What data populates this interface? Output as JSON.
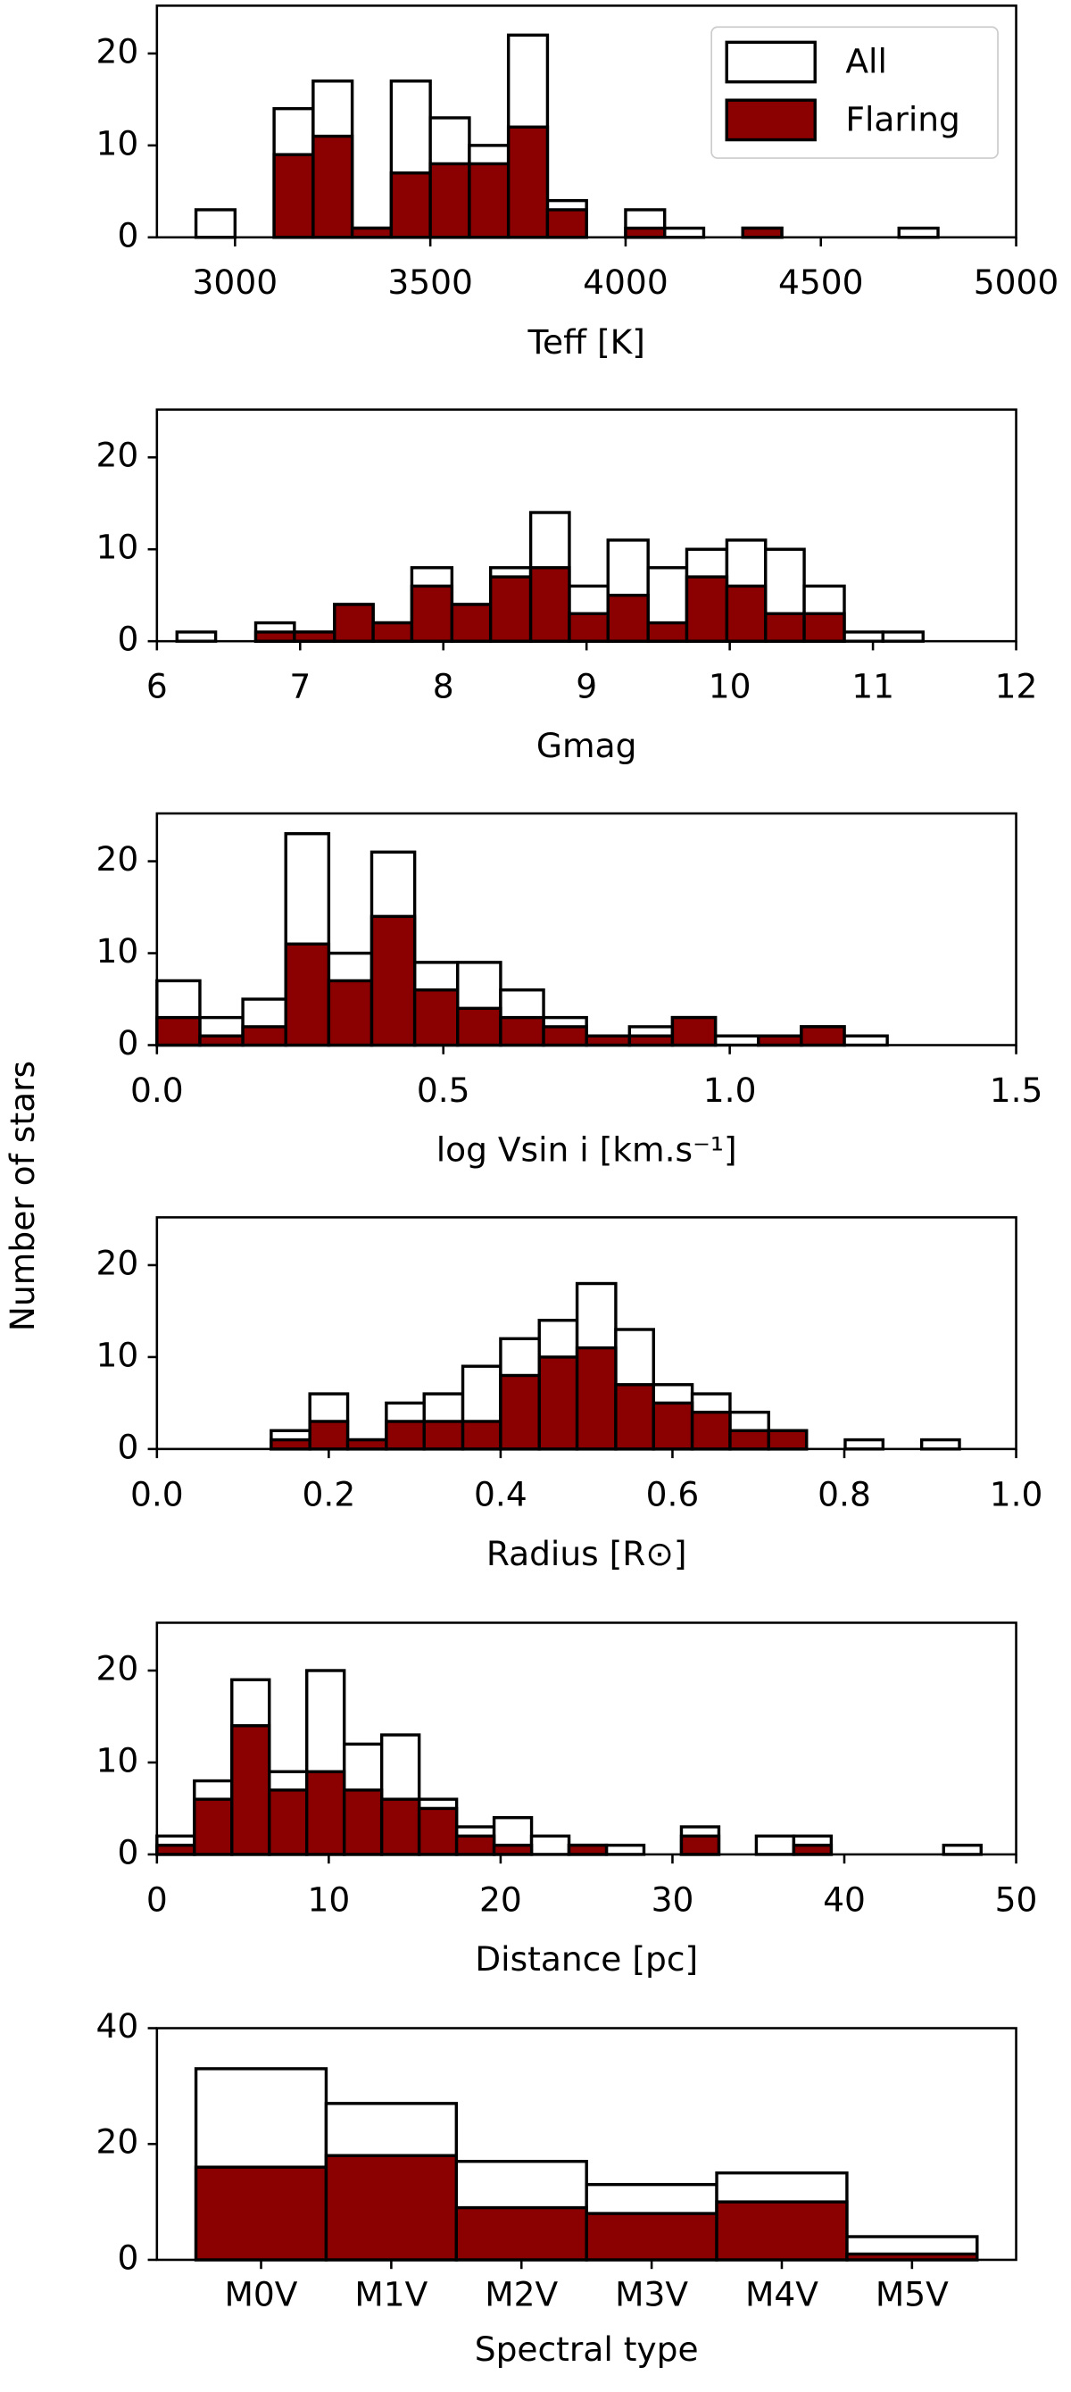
{
  "ylabel": "Number of stars",
  "chart_data": [
    {
      "type": "histogram",
      "xlabel": "Teff [K]",
      "legend": "upper right",
      "edgecolor": "#000000",
      "bins": [
        2900,
        3000,
        3100,
        3200,
        3300,
        3400,
        3500,
        3600,
        3700,
        3800,
        3900,
        4000,
        4100,
        4200,
        4300,
        4400,
        4500,
        4600,
        4700,
        4800
      ],
      "series": [
        {
          "name": "All",
          "color": "#ffffff",
          "values": [
            3,
            0,
            14,
            17,
            1,
            17,
            13,
            10,
            22,
            4,
            0,
            3,
            1,
            0,
            1,
            0,
            0,
            0,
            1
          ]
        },
        {
          "name": "Flaring",
          "color": "#8b0000",
          "values": [
            0,
            0,
            9,
            11,
            1,
            7,
            8,
            8,
            12,
            3,
            0,
            1,
            0,
            0,
            1,
            0,
            0,
            0,
            0
          ]
        }
      ],
      "xlim": [
        2800,
        5000
      ],
      "xticks": [
        3000,
        3500,
        4000,
        4500,
        5000
      ],
      "ylim": [
        0,
        25.2
      ],
      "yticks": [
        0,
        10,
        20
      ]
    },
    {
      "type": "histogram",
      "xlabel": "Gmag",
      "edgecolor": "#000000",
      "bins": [
        6.14,
        6.41,
        6.69,
        6.96,
        7.24,
        7.51,
        7.78,
        8.06,
        8.33,
        8.61,
        8.88,
        9.15,
        9.43,
        9.7,
        9.98,
        10.25,
        10.52,
        10.8,
        11.07,
        11.35
      ],
      "series": [
        {
          "color": "#ffffff",
          "values": [
            1,
            0,
            2,
            1,
            4,
            2,
            8,
            4,
            8,
            14,
            6,
            11,
            8,
            10,
            11,
            10,
            6,
            1,
            1
          ]
        },
        {
          "color": "#8b0000",
          "values": [
            0,
            0,
            1,
            1,
            4,
            2,
            6,
            4,
            7,
            8,
            3,
            5,
            2,
            7,
            6,
            3,
            3,
            0,
            0
          ]
        }
      ],
      "xlim": [
        6,
        12
      ],
      "xticks": [
        6,
        7,
        8,
        9,
        10,
        11,
        12
      ],
      "ylim": [
        0,
        25.2
      ],
      "yticks": [
        0,
        10,
        20
      ]
    },
    {
      "type": "histogram",
      "xlabel": "log Vsin i [km.s⁻¹]",
      "edgecolor": "#000000",
      "bins": [
        0,
        0.075,
        0.15,
        0.225,
        0.3,
        0.375,
        0.45,
        0.525,
        0.6,
        0.675,
        0.75,
        0.825,
        0.9,
        0.975,
        1.05,
        1.125,
        1.2,
        1.275
      ],
      "series": [
        {
          "color": "#ffffff",
          "values": [
            7,
            3,
            5,
            23,
            10,
            21,
            9,
            9,
            6,
            3,
            1,
            2,
            3,
            1,
            1,
            2,
            1
          ]
        },
        {
          "color": "#8b0000",
          "values": [
            3,
            1,
            2,
            11,
            7,
            14,
            6,
            4,
            3,
            2,
            1,
            1,
            3,
            0,
            1,
            2,
            0
          ]
        }
      ],
      "xlim": [
        0,
        1.5
      ],
      "xticks": [
        {
          "value": 0,
          "label": "0.0"
        },
        0.5,
        {
          "value": 1,
          "label": "1.0"
        },
        1.5
      ],
      "ylim": [
        0,
        25.2
      ],
      "yticks": [
        0,
        10,
        20
      ]
    },
    {
      "type": "histogram",
      "xlabel": "Radius [R⊙]",
      "edgecolor": "#000000",
      "bins": [
        0.133,
        0.178,
        0.222,
        0.267,
        0.311,
        0.356,
        0.4,
        0.445,
        0.489,
        0.534,
        0.578,
        0.623,
        0.667,
        0.712,
        0.756,
        0.801,
        0.845,
        0.89,
        0.934
      ],
      "series": [
        {
          "color": "#ffffff",
          "values": [
            2,
            6,
            1,
            5,
            6,
            9,
            12,
            14,
            18,
            13,
            7,
            6,
            4,
            2,
            0,
            1,
            0,
            1
          ]
        },
        {
          "color": "#8b0000",
          "values": [
            1,
            3,
            1,
            3,
            3,
            3,
            8,
            10,
            11,
            7,
            5,
            4,
            2,
            2,
            0,
            0,
            0,
            0
          ]
        }
      ],
      "xlim": [
        0,
        1
      ],
      "xticks": [
        {
          "value": 0,
          "label": "0.0"
        },
        0.2,
        0.4,
        0.6,
        0.8,
        {
          "value": 1,
          "label": "1.0"
        }
      ],
      "ylim": [
        0,
        25.2
      ],
      "yticks": [
        0,
        10,
        20
      ]
    },
    {
      "type": "histogram",
      "xlabel": "Distance [pc]",
      "edgecolor": "#000000",
      "bins": [
        0,
        2.18,
        4.36,
        6.54,
        8.72,
        10.9,
        13.08,
        15.26,
        17.44,
        19.62,
        21.8,
        23.98,
        26.16,
        28.34,
        30.52,
        32.7,
        34.88,
        37.06,
        39.24,
        41.42,
        43.6,
        45.78,
        47.96
      ],
      "series": [
        {
          "color": "#ffffff",
          "values": [
            2,
            8,
            19,
            9,
            20,
            12,
            13,
            6,
            3,
            4,
            2,
            1,
            1,
            0,
            3,
            0,
            2,
            2,
            0,
            0,
            0,
            1
          ]
        },
        {
          "color": "#8b0000",
          "values": [
            1,
            6,
            14,
            7,
            9,
            7,
            6,
            5,
            2,
            1,
            0,
            1,
            0,
            0,
            2,
            0,
            0,
            1,
            0,
            0,
            0,
            0
          ]
        }
      ],
      "xlim": [
        0,
        50
      ],
      "xticks": [
        0,
        10,
        20,
        30,
        40,
        50
      ],
      "ylim": [
        0,
        25.2
      ],
      "yticks": [
        0,
        10,
        20
      ]
    },
    {
      "type": "bar",
      "xlabel": "Spectral type",
      "edgecolor": "#000000",
      "categories": [
        "M0V",
        "M1V",
        "M2V",
        "M3V",
        "M4V",
        "M5V"
      ],
      "series": [
        {
          "color": "#ffffff",
          "values": [
            33,
            27,
            17,
            13,
            15,
            4
          ]
        },
        {
          "color": "#8b0000",
          "values": [
            16,
            18,
            9,
            8,
            10,
            1
          ]
        }
      ],
      "ylim": [
        0,
        40
      ],
      "yticks": [
        0,
        20,
        40
      ]
    }
  ]
}
